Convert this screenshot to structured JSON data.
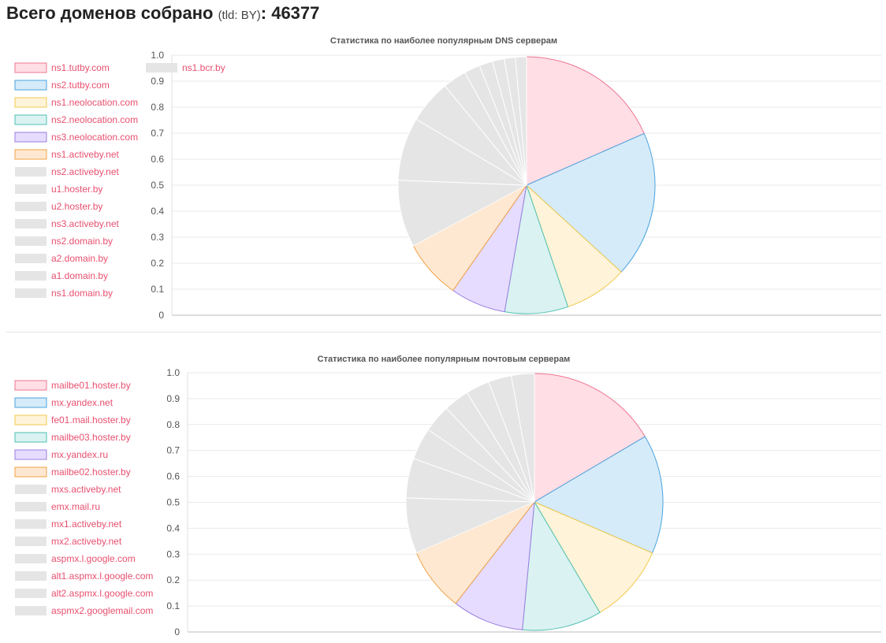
{
  "header": {
    "title": "Всего доменов собрано",
    "tld_text": "(tld: BY)",
    "colon": ":",
    "count": "46377"
  },
  "chart_data": [
    {
      "type": "pie",
      "title": "Статистика по наиболее популярным DNS серверам",
      "y_ticks": [
        "0",
        "0.1",
        "0.2",
        "0.3",
        "0.4",
        "0.5",
        "0.6",
        "0.7",
        "0.8",
        "0.9",
        "1.0"
      ],
      "ylim": [
        0,
        1
      ],
      "grid": true,
      "legend_placement": "left",
      "categories": [
        "ns1.tutby.com",
        "ns2.tutby.com",
        "ns1.neolocation.com",
        "ns2.neolocation.com",
        "ns3.neolocation.com",
        "ns1.activeby.net",
        "ns2.activeby.net",
        "u1.hoster.by",
        "u2.hoster.by",
        "ns3.activeby.net",
        "ns2.domain.by",
        "a2.domain.by",
        "a1.domain.by",
        "ns1.domain.by",
        "ns1.bcr.by"
      ],
      "values": [
        18.5,
        18.5,
        8,
        8,
        7,
        7.5,
        8.5,
        8,
        5.5,
        3,
        2,
        1.7,
        1.5,
        1.4,
        1.4
      ],
      "colors": [
        {
          "fill": "#ffdee5",
          "stroke": "#ef7592"
        },
        {
          "fill": "#d6ebf9",
          "stroke": "#4aa3df"
        },
        {
          "fill": "#fff4d9",
          "stroke": "#f2c94c"
        },
        {
          "fill": "#daf2f2",
          "stroke": "#4fc0b0"
        },
        {
          "fill": "#e6dcff",
          "stroke": "#9b7ee0"
        },
        {
          "fill": "#ffe8d2",
          "stroke": "#f0a347"
        },
        {
          "fill": "#e5e5e5",
          "stroke": "#ffffff"
        }
      ]
    },
    {
      "type": "pie",
      "title": "Статистика по наиболее популярным почтовым серверам",
      "y_ticks": [
        "0",
        "0.1",
        "0.2",
        "0.3",
        "0.4",
        "0.5",
        "0.6",
        "0.7",
        "0.8",
        "0.9",
        "1.0"
      ],
      "ylim": [
        0,
        1
      ],
      "grid": true,
      "legend_placement": "left",
      "categories": [
        "mailbe01.hoster.by",
        "mx.yandex.net",
        "fe01.mail.hoster.by",
        "mailbe03.hoster.by",
        "mx.yandex.ru",
        "mailbe02.hoster.by",
        "mxs.activeby.net",
        "emx.mail.ru",
        "mx1.activeby.net",
        "mx2.activeby.net",
        "aspmx.l.google.com",
        "alt1.aspmx.l.google.com",
        "alt2.aspmx.l.google.com",
        "aspmx2.googlemail.com"
      ],
      "values": [
        16.5,
        15,
        10,
        10,
        9,
        8,
        7,
        5,
        4,
        3.5,
        3.2,
        3,
        2.9,
        2.9
      ],
      "colors": [
        {
          "fill": "#ffdee5",
          "stroke": "#ef7592"
        },
        {
          "fill": "#d6ebf9",
          "stroke": "#4aa3df"
        },
        {
          "fill": "#fff4d9",
          "stroke": "#f2c94c"
        },
        {
          "fill": "#daf2f2",
          "stroke": "#4fc0b0"
        },
        {
          "fill": "#e6dcff",
          "stroke": "#9b7ee0"
        },
        {
          "fill": "#ffe8d2",
          "stroke": "#f0a347"
        },
        {
          "fill": "#e5e5e5",
          "stroke": "#ffffff"
        }
      ]
    }
  ]
}
